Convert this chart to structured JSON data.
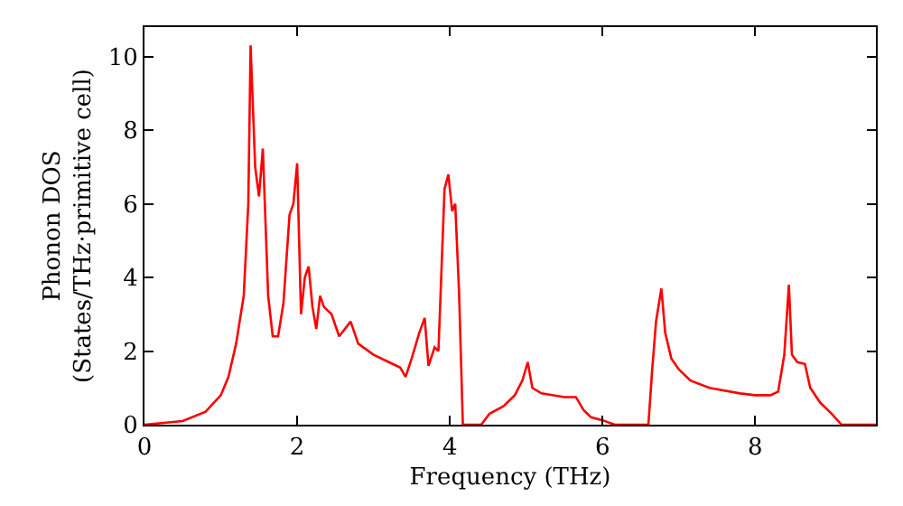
{
  "chart_data": {
    "type": "line",
    "xlabel": "Frequency (THz)",
    "ylabel": "Phonon DOS\n(States/THz·primitive cell)",
    "xlim": [
      0,
      9.58
    ],
    "ylim": [
      0,
      10.8
    ],
    "xticks": [
      0,
      2,
      4,
      6,
      8
    ],
    "yticks": [
      0,
      2,
      4,
      6,
      8,
      10
    ],
    "marker": "none",
    "line_style": "solid",
    "series": [
      {
        "color": "#ff0000",
        "x": [
          0,
          0.5,
          0.8,
          1.0,
          1.1,
          1.2,
          1.3,
          1.36,
          1.39,
          1.45,
          1.5,
          1.55,
          1.62,
          1.68,
          1.75,
          1.82,
          1.9,
          1.95,
          2.0,
          2.05,
          2.1,
          2.15,
          2.2,
          2.25,
          2.3,
          2.35,
          2.45,
          2.55,
          2.7,
          2.8,
          3.0,
          3.2,
          3.35,
          3.42,
          3.5,
          3.6,
          3.67,
          3.72,
          3.8,
          3.85,
          3.93,
          3.98,
          4.03,
          4.07,
          4.12,
          4.17,
          4.41,
          4.52,
          4.7,
          4.85,
          4.95,
          5.02,
          5.08,
          5.2,
          5.5,
          5.65,
          5.75,
          5.85,
          6.0,
          6.16,
          6.6,
          6.65,
          6.7,
          6.77,
          6.82,
          6.9,
          7.0,
          7.15,
          7.4,
          7.8,
          8.0,
          8.2,
          8.3,
          8.38,
          8.44,
          8.48,
          8.55,
          8.65,
          8.72,
          8.85,
          9.0,
          9.13,
          9.58
        ],
        "values": [
          0,
          0.1,
          0.35,
          0.8,
          1.3,
          2.2,
          3.5,
          6,
          10.3,
          7,
          6.2,
          7.5,
          3.5,
          2.4,
          2.4,
          3.3,
          5.7,
          6.0,
          7.1,
          3.0,
          4.0,
          4.3,
          3.2,
          2.6,
          3.5,
          3.2,
          3.0,
          2.4,
          2.8,
          2.2,
          1.9,
          1.7,
          1.55,
          1.3,
          1.8,
          2.5,
          2.9,
          1.6,
          2.1,
          2.0,
          6.4,
          6.8,
          5.8,
          6.0,
          3.6,
          0,
          0,
          0.3,
          0.5,
          0.8,
          1.2,
          1.7,
          1.0,
          0.85,
          0.75,
          0.75,
          0.4,
          0.2,
          0.12,
          0,
          0,
          1.5,
          2.8,
          3.7,
          2.5,
          1.8,
          1.5,
          1.2,
          1.0,
          0.85,
          0.8,
          0.8,
          0.9,
          1.9,
          3.8,
          1.9,
          1.7,
          1.65,
          1.0,
          0.6,
          0.3,
          0,
          0
        ]
      }
    ]
  }
}
